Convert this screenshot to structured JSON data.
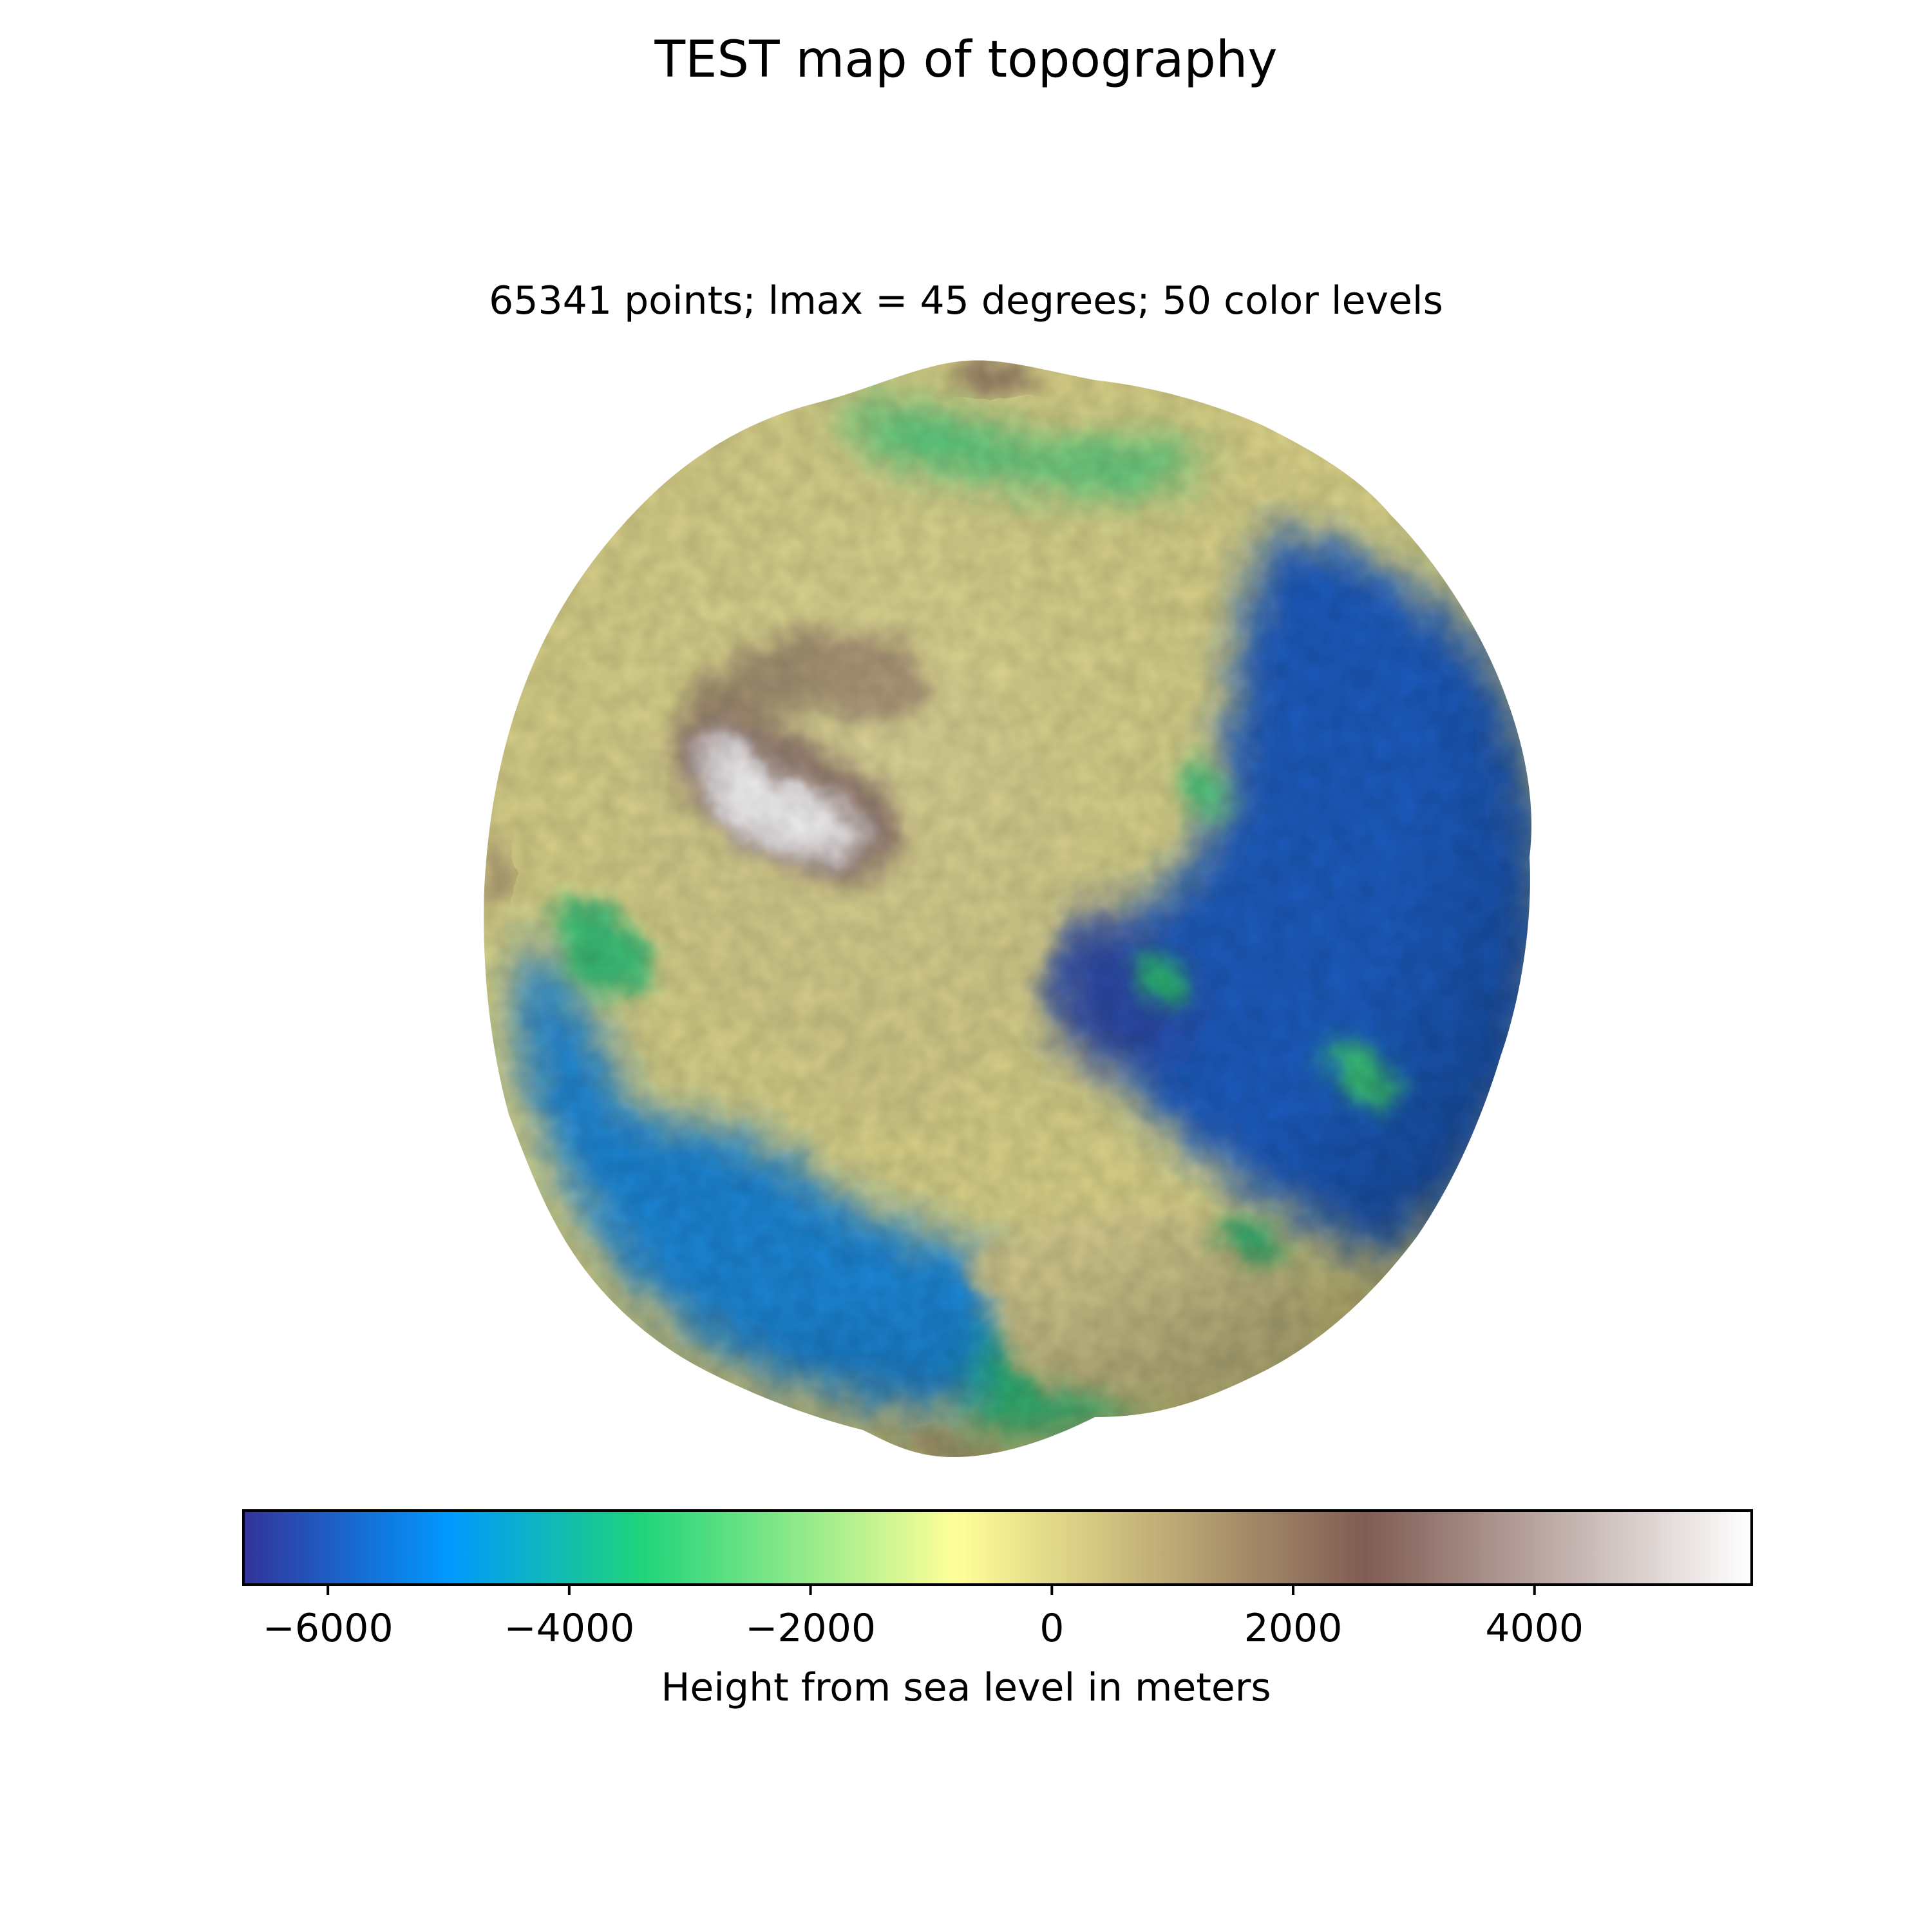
{
  "figure": {
    "title": "TEST map of topography",
    "subtitle": "65341 points; lmax = 45 degrees; 50 color levels"
  },
  "colorbar": {
    "label": "Height from sea level in meters",
    "vmin": -6700,
    "vmax": 5800,
    "ticks": [
      -6000,
      -4000,
      -2000,
      0,
      2000,
      4000
    ],
    "tick_labels": [
      "−6000",
      "−4000",
      "−2000",
      "0",
      "2000",
      "4000"
    ],
    "colormap": "terrain",
    "stops": [
      {
        "value": -6700,
        "color": "#333399"
      },
      {
        "value": -5000,
        "color": "#0099ff"
      },
      {
        "value": -3400,
        "color": "#1fd47a"
      },
      {
        "value": -800,
        "color": "#ffff99"
      },
      {
        "value": 2600,
        "color": "#805c54"
      },
      {
        "value": 5800,
        "color": "#ffffff"
      }
    ]
  }
}
